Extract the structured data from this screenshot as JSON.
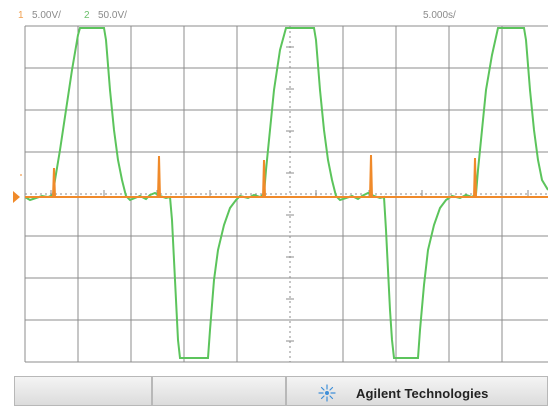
{
  "status": {
    "ch1_number": "1",
    "ch1_scale": "5.00V/",
    "ch2_number": "2",
    "ch2_scale": "50.0V/",
    "timebase": "5.000s/"
  },
  "brand": {
    "name": "Agilent Technologies",
    "logo_icon": "agilent-spark-icon"
  },
  "colors": {
    "ch1": "#f08a2a",
    "ch2": "#5cc45c",
    "grid": "#8c8c8c",
    "background": "#ffffff"
  },
  "waveforms": {
    "ch2_square_edges": "green trapezoid wave with flat top and flat bottom",
    "ch1_spikes": "orange trace with short positive spikes at each transition"
  }
}
